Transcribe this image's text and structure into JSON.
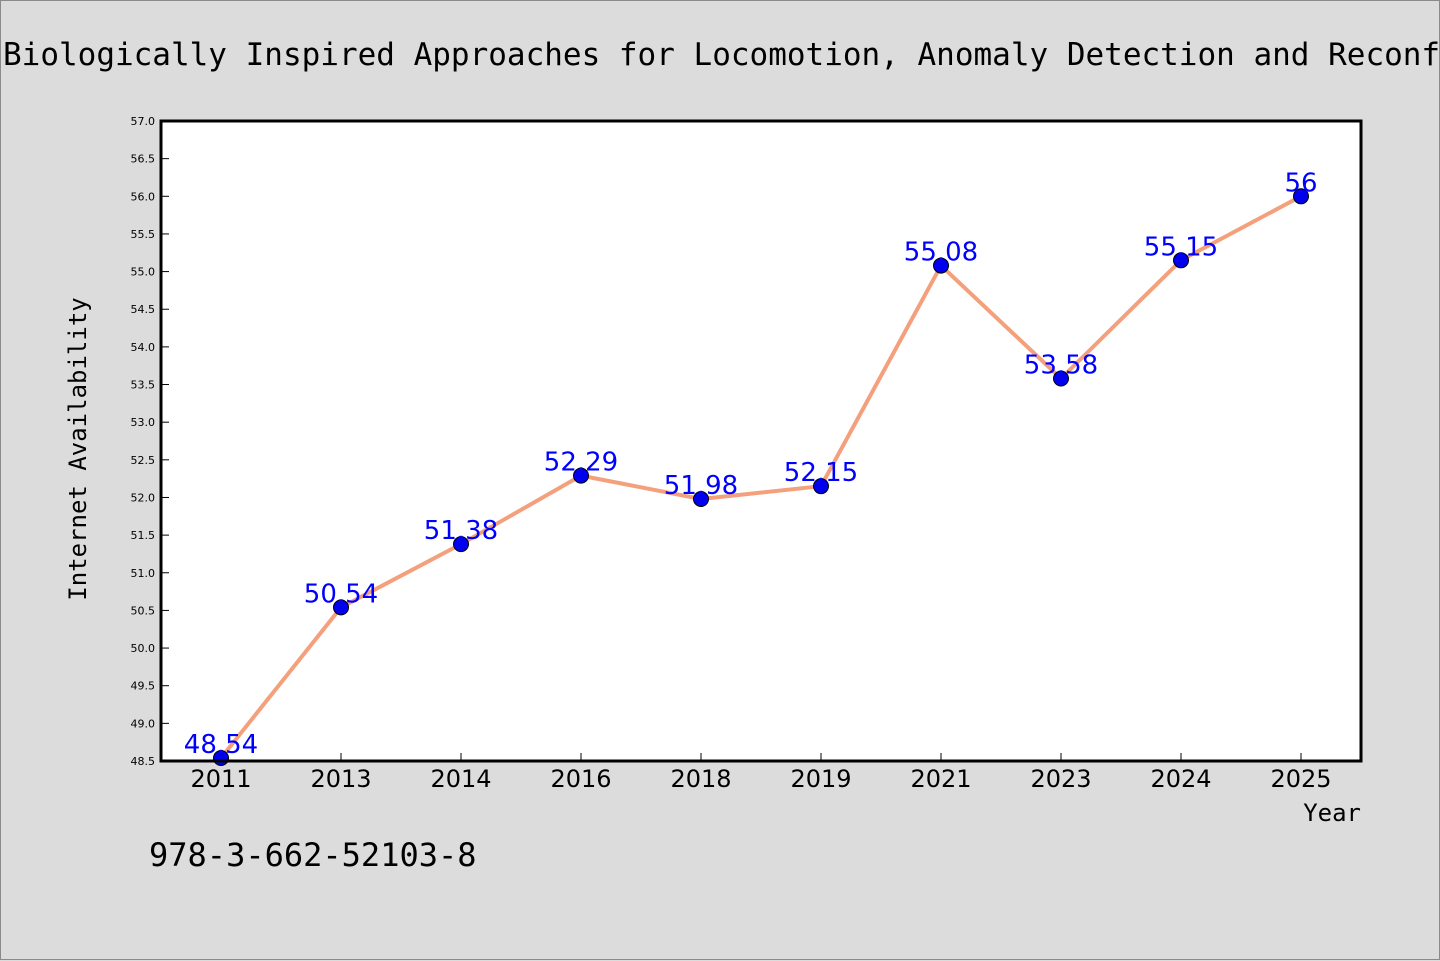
{
  "chart_data": {
    "type": "line",
    "title": "Biologically Inspired Approaches for Locomotion, Anomaly Detection and Reconfiguration",
    "xlabel": "Year",
    "ylabel": "Internet Availability",
    "categories": [
      "2011",
      "2013",
      "2014",
      "2016",
      "2018",
      "2019",
      "2021",
      "2023",
      "2024",
      "2025"
    ],
    "series": [
      {
        "values": [
          48.54,
          50.54,
          51.38,
          52.29,
          51.98,
          52.15,
          55.08,
          53.58,
          55.15,
          56
        ]
      }
    ],
    "ylim": [
      48.5,
      57.0
    ],
    "yticks": [
      "48.5",
      "49.0",
      "49.5",
      "50.0",
      "50.5",
      "51.0",
      "51.5",
      "52.0",
      "52.5",
      "53.0",
      "53.5",
      "54.0",
      "54.5",
      "55.0",
      "55.5",
      "56.0",
      "56.5",
      "57.0"
    ],
    "data_labels": [
      "48.54",
      "50.54",
      "51.38",
      "52.29",
      "51.98",
      "52.15",
      "55.08",
      "53.58",
      "55.15",
      "56"
    ],
    "grid": false,
    "legend": "none",
    "colors": {
      "line": "#f4a07d",
      "marker": "#0000ee",
      "label": "#0000ff",
      "plot_background": "#ffffff",
      "figure_background": "#dcdcdc"
    }
  },
  "footer": {
    "isbn": "978-3-662-52103-8"
  }
}
